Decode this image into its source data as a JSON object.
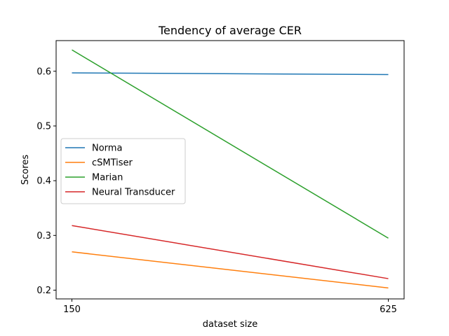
{
  "chart_data": {
    "type": "line",
    "title": "Tendency of average CER",
    "xlabel": "dataset size",
    "ylabel": "Scores",
    "categories": [
      "150",
      "625"
    ],
    "x": [
      150,
      625
    ],
    "ylim": [
      0.184,
      0.656
    ],
    "yticks": [
      0.2,
      0.3,
      0.4,
      0.5,
      0.6
    ],
    "ytick_labels": [
      "0.2",
      "0.3",
      "0.4",
      "0.5",
      "0.6"
    ],
    "grid": false,
    "legend_position": "center-left",
    "series": [
      {
        "name": "Norma",
        "color": "#1f77b4",
        "values": [
          0.597,
          0.594
        ]
      },
      {
        "name": "cSMTiser",
        "color": "#ff7f0e",
        "values": [
          0.27,
          0.204
        ]
      },
      {
        "name": "Marian",
        "color": "#2ca02c",
        "values": [
          0.639,
          0.295
        ]
      },
      {
        "name": "Neural Transducer",
        "color": "#d62728",
        "values": [
          0.318,
          0.221
        ]
      }
    ]
  }
}
